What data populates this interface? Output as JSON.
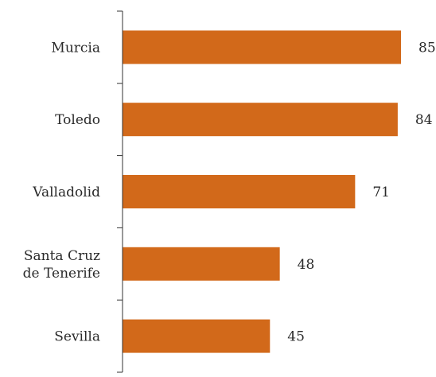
{
  "chart_data": {
    "type": "bar",
    "orientation": "horizontal",
    "categories": [
      "Murcia",
      "Toledo",
      "Valladolid",
      "Santa Cruz de Tenerife",
      "Sevilla"
    ],
    "category_label_lines": [
      [
        "Murcia"
      ],
      [
        "Toledo"
      ],
      [
        "Valladolid"
      ],
      [
        "Santa Cruz",
        "de Tenerife"
      ],
      [
        "Sevilla"
      ]
    ],
    "values": [
      85,
      84,
      71,
      48,
      45
    ],
    "value_labels": [
      "85",
      "84",
      "71",
      "48",
      "45"
    ],
    "xlim": [
      0,
      90
    ],
    "grid": false,
    "bar_color": "#d2691a",
    "axis_color": "#333333",
    "text_color": "#2a2a2a",
    "title": "",
    "xlabel": "",
    "ylabel": ""
  }
}
